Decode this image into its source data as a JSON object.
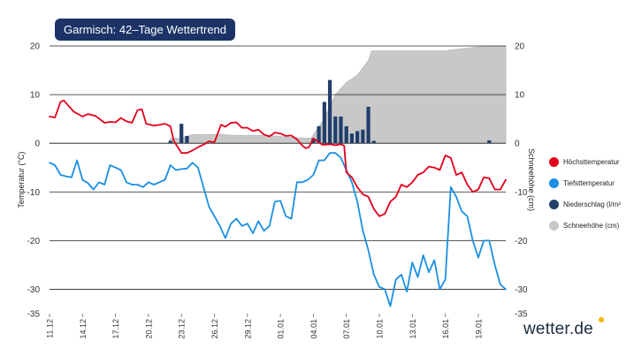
{
  "title": "Garmisch: 42–Tage Wettertrend",
  "brand": "wetter.de",
  "colors": {
    "title_bg": "#1b3366",
    "max_temp": "#e4001b",
    "min_temp": "#1a8fe3",
    "precip": "#213e6b",
    "snow": "#c8c8c8",
    "sun": "#f6b400"
  },
  "legend": [
    {
      "label": "Höchsttemperatur",
      "color": "#e4001b"
    },
    {
      "label": "Tiefsttemperatur",
      "color": "#1a8fe3"
    },
    {
      "label": "Niederschlag (l/m²",
      "color": "#213e6b"
    },
    {
      "label": "Schneehöhe (cm)",
      "color": "#c8c8c8"
    }
  ],
  "chart_data": {
    "type": "line",
    "ylabel": "Temperatur (°C)",
    "y2label": "Schneehöhe (cm)",
    "ylim": [
      -35,
      20
    ],
    "y2lim": [
      -35,
      20
    ],
    "yticks": [
      20,
      10,
      0,
      -10,
      -20,
      -30,
      -35
    ],
    "y2ticks": [
      20,
      10,
      0,
      -10,
      -20,
      -30,
      -35
    ],
    "xlim": [
      0,
      41.5
    ],
    "xticks": [
      {
        "x": 0,
        "label": "11.12"
      },
      {
        "x": 3,
        "label": "14.12"
      },
      {
        "x": 6,
        "label": "17.12"
      },
      {
        "x": 9,
        "label": "20.12"
      },
      {
        "x": 12,
        "label": "23.12"
      },
      {
        "x": 15,
        "label": "26.12"
      },
      {
        "x": 18,
        "label": "29.12"
      },
      {
        "x": 21,
        "label": "01.01"
      },
      {
        "x": 24,
        "label": "04.01"
      },
      {
        "x": 27,
        "label": "07.01"
      },
      {
        "x": 30,
        "label": "10.01"
      },
      {
        "x": 33,
        "label": "13.01"
      },
      {
        "x": 36,
        "label": "16.01"
      },
      {
        "x": 39,
        "label": "19.01"
      }
    ],
    "series": [
      {
        "name": "Höchsttemperatur",
        "type": "line",
        "points": [
          [
            0,
            5.5
          ],
          [
            0.5,
            5.3
          ],
          [
            1,
            8.5
          ],
          [
            1.3,
            8.8
          ],
          [
            1.8,
            7.5
          ],
          [
            2.2,
            6.5
          ],
          [
            3,
            5.5
          ],
          [
            3.5,
            6
          ],
          [
            4.2,
            5.6
          ],
          [
            5,
            4.2
          ],
          [
            5.5,
            4.4
          ],
          [
            6,
            4.3
          ],
          [
            6.5,
            5.2
          ],
          [
            7,
            4.5
          ],
          [
            7.5,
            4.2
          ],
          [
            8,
            6.8
          ],
          [
            8.4,
            7
          ],
          [
            8.8,
            4
          ],
          [
            9.5,
            3.6
          ],
          [
            10,
            3.8
          ],
          [
            10.5,
            4
          ],
          [
            11,
            3.5
          ],
          [
            11.3,
            0.5
          ],
          [
            12,
            -2
          ],
          [
            12.5,
            -2
          ],
          [
            13,
            -1.5
          ],
          [
            13.5,
            -0.8
          ],
          [
            14,
            -0.3
          ],
          [
            14.5,
            0.4
          ],
          [
            15,
            0.2
          ],
          [
            15.3,
            2
          ],
          [
            15.6,
            3.8
          ],
          [
            16,
            3.4
          ],
          [
            16.5,
            4.2
          ],
          [
            17,
            4.3
          ],
          [
            17.5,
            3.2
          ],
          [
            18,
            3.2
          ],
          [
            18.5,
            2.5
          ],
          [
            19,
            2.8
          ],
          [
            19.5,
            1.8
          ],
          [
            20,
            1.4
          ],
          [
            20.5,
            2.2
          ],
          [
            21,
            2
          ],
          [
            21.5,
            1.5
          ],
          [
            22,
            1.6
          ],
          [
            22.5,
            0.8
          ],
          [
            23,
            -0.5
          ],
          [
            23.3,
            -1
          ],
          [
            23.6,
            -0.8
          ],
          [
            24,
            1
          ],
          [
            24.5,
            0.2
          ],
          [
            24.8,
            -0.3
          ],
          [
            25,
            -0.3
          ],
          [
            25.5,
            -0.2
          ],
          [
            26,
            -0.4
          ],
          [
            26.5,
            -0.2
          ],
          [
            26.8,
            -0.5
          ],
          [
            27,
            -6
          ],
          [
            27.5,
            -7
          ],
          [
            28,
            -9
          ],
          [
            28.5,
            -10.5
          ],
          [
            29,
            -11
          ],
          [
            29.5,
            -13.5
          ],
          [
            30,
            -15
          ],
          [
            30.5,
            -14.5
          ],
          [
            31,
            -12
          ],
          [
            31.5,
            -11
          ],
          [
            32,
            -8.5
          ],
          [
            32.5,
            -9
          ],
          [
            33,
            -8
          ],
          [
            33.5,
            -6.5
          ],
          [
            34,
            -6
          ],
          [
            34.5,
            -4.8
          ],
          [
            35,
            -5
          ],
          [
            35.5,
            -5.5
          ],
          [
            36,
            -2.5
          ],
          [
            36.5,
            -3
          ],
          [
            37,
            -6.5
          ],
          [
            37.5,
            -6
          ],
          [
            38,
            -8.5
          ],
          [
            38.5,
            -10
          ],
          [
            39,
            -9.5
          ],
          [
            39.5,
            -7
          ],
          [
            40,
            -7.2
          ],
          [
            40.5,
            -9.5
          ],
          [
            41,
            -9.5
          ],
          [
            41.5,
            -7.5
          ]
        ]
      },
      {
        "name": "Tiefsttemperatur",
        "type": "line",
        "points": [
          [
            0,
            -4
          ],
          [
            0.5,
            -4.5
          ],
          [
            1,
            -6.5
          ],
          [
            1.5,
            -6.8
          ],
          [
            2,
            -7
          ],
          [
            2.5,
            -3.5
          ],
          [
            3,
            -7.5
          ],
          [
            3.5,
            -8.2
          ],
          [
            4,
            -9.5
          ],
          [
            4.5,
            -8
          ],
          [
            5,
            -8.5
          ],
          [
            5.5,
            -4.5
          ],
          [
            6,
            -5
          ],
          [
            6.5,
            -5.5
          ],
          [
            7,
            -8
          ],
          [
            7.5,
            -8.5
          ],
          [
            8,
            -8.5
          ],
          [
            8.5,
            -9
          ],
          [
            9,
            -8
          ],
          [
            9.5,
            -8.5
          ],
          [
            10,
            -8
          ],
          [
            10.5,
            -7.5
          ],
          [
            11,
            -4.5
          ],
          [
            11.5,
            -5.5
          ],
          [
            12,
            -5.3
          ],
          [
            12.5,
            -5.2
          ],
          [
            13,
            -4
          ],
          [
            13.5,
            -5
          ],
          [
            14,
            -9
          ],
          [
            14.5,
            -13
          ],
          [
            15,
            -15
          ],
          [
            15.5,
            -17
          ],
          [
            16,
            -19.5
          ],
          [
            16.5,
            -16.5
          ],
          [
            17,
            -15.5
          ],
          [
            17.5,
            -17
          ],
          [
            18,
            -16.5
          ],
          [
            18.5,
            -18.5
          ],
          [
            19,
            -16
          ],
          [
            19.5,
            -18
          ],
          [
            20,
            -17
          ],
          [
            20.5,
            -12
          ],
          [
            21,
            -11.8
          ],
          [
            21.5,
            -15
          ],
          [
            22,
            -15.5
          ],
          [
            22.5,
            -8
          ],
          [
            23,
            -8
          ],
          [
            23.5,
            -7.5
          ],
          [
            24,
            -6.5
          ],
          [
            24.5,
            -3.5
          ],
          [
            25,
            -3.5
          ],
          [
            25.5,
            -2
          ],
          [
            26,
            -2
          ],
          [
            26.5,
            -3
          ],
          [
            27,
            -5.5
          ],
          [
            27.5,
            -8
          ],
          [
            28,
            -12
          ],
          [
            28.5,
            -18
          ],
          [
            29,
            -22
          ],
          [
            29.5,
            -27
          ],
          [
            30,
            -29.5
          ],
          [
            30.5,
            -30
          ],
          [
            31,
            -33.5
          ],
          [
            31.5,
            -28
          ],
          [
            32,
            -27
          ],
          [
            32.5,
            -30.5
          ],
          [
            33,
            -24.5
          ],
          [
            33.5,
            -27.5
          ],
          [
            34,
            -23
          ],
          [
            34.5,
            -26.5
          ],
          [
            35,
            -24
          ],
          [
            35.5,
            -30
          ],
          [
            36,
            -28
          ],
          [
            36.5,
            -9
          ],
          [
            37,
            -11
          ],
          [
            37.5,
            -14
          ],
          [
            38,
            -15
          ],
          [
            38.5,
            -20
          ],
          [
            39,
            -23.5
          ],
          [
            39.5,
            -20
          ],
          [
            40,
            -20
          ],
          [
            40.5,
            -25
          ],
          [
            41,
            -29
          ],
          [
            41.5,
            -30
          ]
        ]
      },
      {
        "name": "Niederschlag (l/m²",
        "type": "bar",
        "points": [
          [
            11,
            0.5
          ],
          [
            12,
            4
          ],
          [
            12.5,
            1.5
          ],
          [
            24,
            1
          ],
          [
            24.5,
            3.5
          ],
          [
            25,
            8.5
          ],
          [
            25.5,
            13
          ],
          [
            26,
            5.5
          ],
          [
            26.5,
            5.5
          ],
          [
            27,
            3.5
          ],
          [
            27.5,
            2
          ],
          [
            28,
            2.5
          ],
          [
            28.5,
            2.8
          ],
          [
            29,
            7.5
          ],
          [
            29.5,
            0.5
          ],
          [
            40,
            0.6
          ]
        ]
      },
      {
        "name": "Schneehöhe (cm)",
        "type": "area",
        "points": [
          [
            0,
            0
          ],
          [
            10.8,
            0
          ],
          [
            11,
            1
          ],
          [
            12,
            1
          ],
          [
            13,
            1.8
          ],
          [
            15.5,
            1.8
          ],
          [
            17,
            1.6
          ],
          [
            20,
            1.6
          ],
          [
            22,
            1.2
          ],
          [
            23.8,
            1
          ],
          [
            24.2,
            2.5
          ],
          [
            25,
            5
          ],
          [
            26,
            10
          ],
          [
            27,
            12.5
          ],
          [
            28,
            14
          ],
          [
            29,
            17
          ],
          [
            29.3,
            19
          ],
          [
            30,
            19
          ],
          [
            33,
            19
          ],
          [
            36,
            19
          ],
          [
            37,
            19.3
          ],
          [
            39,
            19.8
          ],
          [
            41.5,
            20
          ]
        ]
      }
    ]
  }
}
